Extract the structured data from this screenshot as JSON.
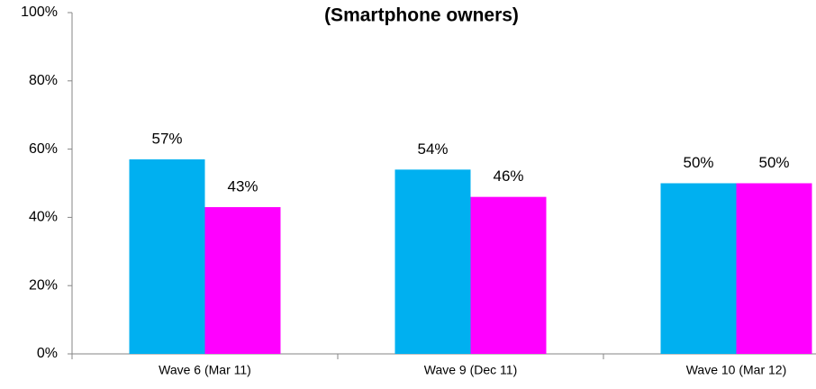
{
  "chart_data": {
    "type": "bar",
    "title": "(Smartphone owners)",
    "categories": [
      "Wave 6 (Mar 11)",
      "Wave 9 (Dec 11)",
      "Wave 10 (Mar 12)"
    ],
    "series": [
      {
        "color": "#00b0f0",
        "values": [
          57,
          54,
          50
        ],
        "value_labels": [
          "57%",
          "54%",
          "50%"
        ]
      },
      {
        "color": "#ff00ff",
        "values": [
          43,
          46,
          50
        ],
        "value_labels": [
          "43%",
          "46%",
          "50%"
        ]
      }
    ],
    "ylim": [
      0,
      100
    ],
    "yticks": [
      {
        "value": 0,
        "label": "0%"
      },
      {
        "value": 20,
        "label": "20%"
      },
      {
        "value": 40,
        "label": "40%"
      },
      {
        "value": 60,
        "label": "60%"
      },
      {
        "value": 80,
        "label": "80%"
      },
      {
        "value": 100,
        "label": "100%"
      }
    ],
    "grid": false
  }
}
